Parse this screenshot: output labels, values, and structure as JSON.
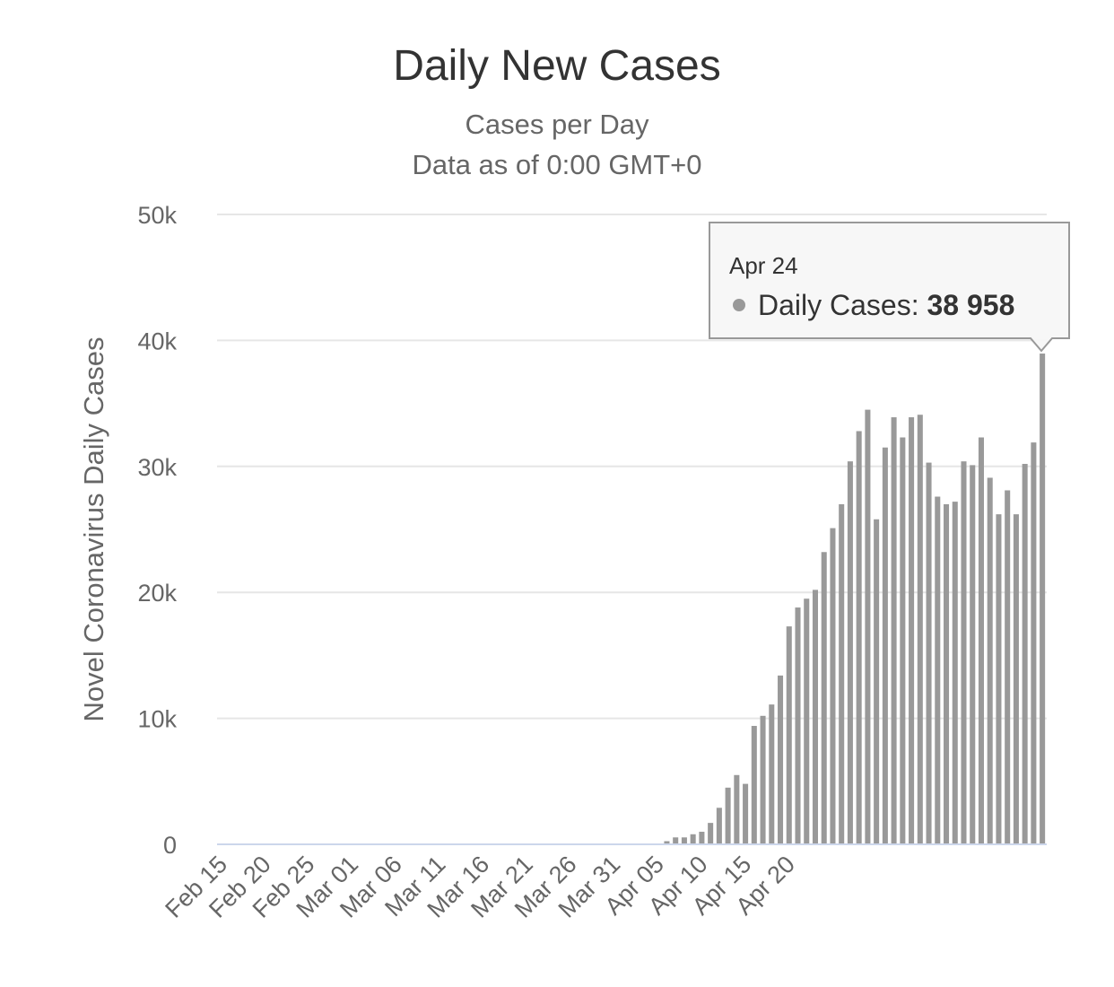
{
  "chart_data": {
    "type": "bar",
    "title": "Daily New Cases",
    "subtitle_lines": [
      "Cases per Day",
      "Data as of 0:00 GMT+0"
    ],
    "ylabel": "Novel Coronavirus Daily Cases",
    "xlabel": "",
    "ylim": [
      0,
      50000
    ],
    "yticks": [
      "0",
      "10k",
      "20k",
      "30k",
      "40k",
      "50k"
    ],
    "ytick_values": [
      0,
      10000,
      20000,
      30000,
      40000,
      50000
    ],
    "xtick_labels": [
      "Feb 15",
      "Feb 20",
      "Feb 25",
      "Mar 01",
      "Mar 06",
      "Mar 11",
      "Mar 16",
      "Mar 21",
      "Mar 26",
      "Mar 31",
      "Apr 05",
      "Apr 10",
      "Apr 15",
      "Apr 20"
    ],
    "xtick_every": 5,
    "grid": true,
    "legend": "none",
    "bar_color": "#999999",
    "series": [
      {
        "name": "Daily Cases",
        "values": [
          0,
          0,
          0,
          0,
          0,
          0,
          0,
          0,
          0,
          0,
          0,
          0,
          0,
          0,
          0,
          0,
          0,
          0,
          0,
          0,
          0,
          0,
          0,
          0,
          0,
          0,
          0,
          0,
          0,
          0,
          0,
          0,
          0,
          0,
          0,
          0,
          0,
          0,
          0,
          0,
          0,
          0,
          0,
          0,
          0,
          0,
          0,
          0,
          0,
          0,
          0,
          250,
          550,
          550,
          800,
          1000,
          1700,
          2900,
          4500,
          5500,
          4800,
          9400,
          10200,
          11100,
          13400,
          17300,
          18800,
          19500,
          20200,
          23200,
          25100,
          27000,
          30400,
          32800,
          34500,
          25800,
          31500,
          33900,
          32300,
          33900,
          34100,
          30300,
          27600,
          27000,
          27200,
          30400,
          30100,
          32300,
          29100,
          26200,
          28100,
          26200,
          30200,
          31900,
          38958
        ]
      }
    ],
    "tooltip": {
      "date": "Apr 24",
      "series": "Daily Cases",
      "value": "38 958"
    }
  }
}
